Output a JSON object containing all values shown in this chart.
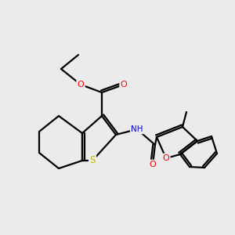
{
  "bg_color": "#ebebeb",
  "bond_color": "#000000",
  "S_color": "#c8b400",
  "N_color": "#0000cd",
  "O_color": "#ff0000",
  "O_bf_color": "#cc0000",
  "lw": 1.6,
  "figsize": [
    3.0,
    3.0
  ],
  "dpi": 100,
  "xlim": [
    0,
    10
  ],
  "ylim": [
    0,
    10
  ]
}
